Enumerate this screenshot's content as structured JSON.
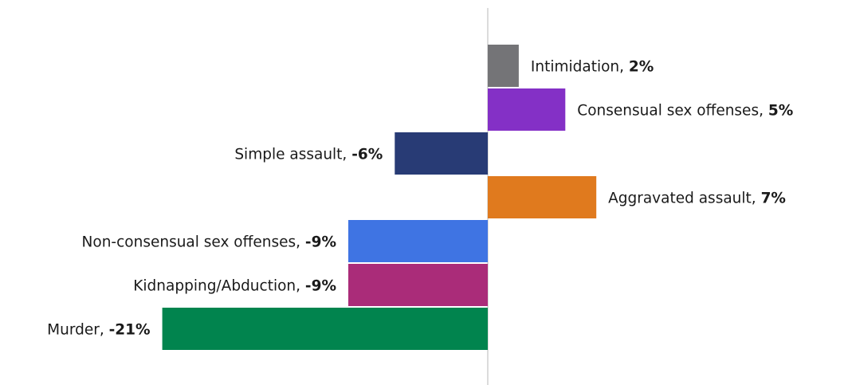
{
  "chart_data": {
    "type": "bar",
    "orientation": "horizontal",
    "title": "",
    "xlabel": "",
    "ylabel": "",
    "grid": false,
    "legend": "none",
    "xlim": [
      -21,
      8
    ],
    "categories": [
      "Intimidation",
      "Consensual sex offenses",
      "Simple assault",
      "Aggravated assault",
      "Non-consensual sex offenses",
      "Kidnapping/Abduction",
      "Murder"
    ],
    "values": [
      2,
      5,
      -6,
      7,
      -9,
      -9,
      -21
    ],
    "value_labels": [
      "2%",
      "5%",
      "-6%",
      "7%",
      "-9%",
      "-9%",
      "-21%"
    ],
    "colors": [
      "#747477",
      "#8430c6",
      "#283b75",
      "#e07a1e",
      "#3f74e3",
      "#aa2c79",
      "#01844e"
    ],
    "zero_line_color": "#d0d0d0"
  }
}
